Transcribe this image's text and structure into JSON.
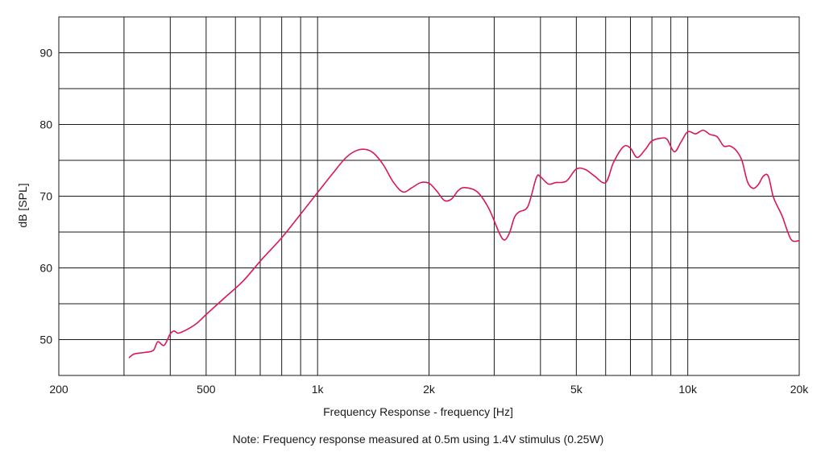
{
  "chart_data": {
    "type": "line",
    "xscale": "log",
    "xlim": [
      200,
      20000
    ],
    "ylim": [
      45,
      95
    ],
    "grid": true,
    "xlabel": "Frequency Response - frequency [Hz]",
    "ylabel": "dB [SPL]",
    "note": "Note: Frequency response measured at 0.5m using 1.4V stimulus (0.25W)",
    "x_ticks": [
      {
        "value": 200,
        "label": "200"
      },
      {
        "value": 500,
        "label": "500"
      },
      {
        "value": 1000,
        "label": "1k"
      },
      {
        "value": 2000,
        "label": "2k"
      },
      {
        "value": 5000,
        "label": "5k"
      },
      {
        "value": 10000,
        "label": "10k"
      },
      {
        "value": 20000,
        "label": "20k"
      }
    ],
    "y_ticks": [
      {
        "value": 50,
        "label": "50"
      },
      {
        "value": 60,
        "label": "60"
      },
      {
        "value": 70,
        "label": "70"
      },
      {
        "value": 80,
        "label": "80"
      },
      {
        "value": 90,
        "label": "90"
      }
    ],
    "x_gridlines": [
      300,
      400,
      500,
      600,
      700,
      800,
      900,
      1000,
      2000,
      3000,
      4000,
      5000,
      6000,
      7000,
      8000,
      9000,
      10000
    ],
    "y_gridlines": [
      50,
      55,
      60,
      65,
      70,
      75,
      80,
      85,
      90
    ],
    "series_color": "#d8175c",
    "series": [
      {
        "x": [
          310,
          320,
          340,
          360,
          370,
          385,
          400,
          410,
          420,
          440,
          470,
          500,
          560,
          630,
          710,
          800,
          900,
          1000,
          1100,
          1200,
          1300,
          1400,
          1500,
          1600,
          1700,
          1800,
          1900,
          2000,
          2100,
          2200,
          2300,
          2400,
          2500,
          2700,
          2900,
          3100,
          3200,
          3300,
          3400,
          3500,
          3700,
          3900,
          4000,
          4200,
          4400,
          4700,
          5000,
          5300,
          5600,
          6000,
          6300,
          6700,
          7000,
          7300,
          7700,
          8000,
          8500,
          8800,
          9200,
          9600,
          10000,
          10500,
          11000,
          11500,
          12000,
          12500,
          13000,
          13500,
          14000,
          14500,
          15000,
          15500,
          16000,
          16500,
          17000,
          17500,
          18000,
          19000,
          20000
        ],
        "y": [
          47.5,
          48,
          48.2,
          48.5,
          49.7,
          49.2,
          50.8,
          51.2,
          50.9,
          51.3,
          52.2,
          53.5,
          55.8,
          58.2,
          61.3,
          64.2,
          67.5,
          70.5,
          73.2,
          75.5,
          76.5,
          76.2,
          74.5,
          72.0,
          70.6,
          71.2,
          71.9,
          71.8,
          70.7,
          69.4,
          69.6,
          70.8,
          71.2,
          70.6,
          68.3,
          64.8,
          63.9,
          64.9,
          67.0,
          67.8,
          68.6,
          72.6,
          72.7,
          71.7,
          71.9,
          72.1,
          73.8,
          73.7,
          72.8,
          71.9,
          74.7,
          76.9,
          76.7,
          75.4,
          76.6,
          77.7,
          78.1,
          77.9,
          76.2,
          77.6,
          79.0,
          78.7,
          79.2,
          78.6,
          78.3,
          77.0,
          77.0,
          76.4,
          75.0,
          72.0,
          71.1,
          71.6,
          72.8,
          72.8,
          70.0,
          68.5,
          67.2,
          64.0,
          63.8
        ]
      }
    ]
  }
}
